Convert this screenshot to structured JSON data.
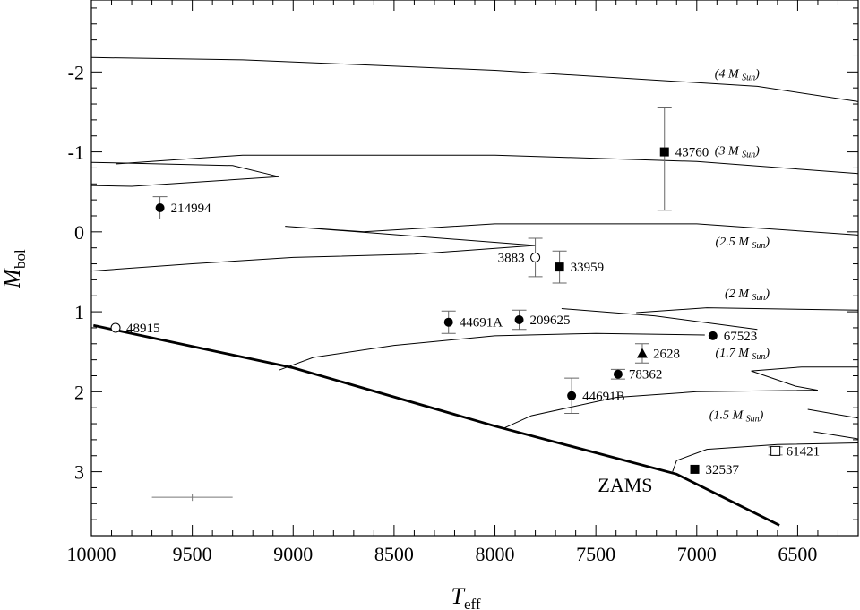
{
  "chart_data": {
    "type": "scatter",
    "xlabel": {
      "main": "T",
      "sub": "eff"
    },
    "ylabel": {
      "main": "M",
      "sub": "bol"
    },
    "xlim": [
      10000,
      6200
    ],
    "ylim": [
      3.8,
      -2.9
    ],
    "x_ticks": [
      10000,
      9500,
      9000,
      8500,
      8000,
      7500,
      7000,
      6500
    ],
    "y_ticks": [
      -2,
      -1,
      0,
      1,
      2,
      3
    ],
    "x_tick_labels": [
      "10000",
      "9500",
      "9000",
      "8500",
      "8000",
      "7500",
      "7000",
      "6500"
    ],
    "y_tick_labels": [
      "-2",
      "-1",
      "0",
      "1",
      "2",
      "3"
    ],
    "stars": [
      {
        "label": "214994",
        "teff": 9660,
        "mbol": -0.3,
        "marker": "filled-circle",
        "err_low": 0.14,
        "err_high": 0.14
      },
      {
        "label": "48915",
        "teff": 9880,
        "mbol": 1.2,
        "marker": "open-circle"
      },
      {
        "label": "3883",
        "teff": 7800,
        "mbol": 0.32,
        "marker": "open-circle",
        "err_low": 0.24,
        "err_high": 0.24
      },
      {
        "label": "33959",
        "teff": 7680,
        "mbol": 0.44,
        "marker": "filled-square",
        "err_low": 0.2,
        "err_high": 0.2
      },
      {
        "label": "43760",
        "teff": 7160,
        "mbol": -1.0,
        "marker": "filled-square",
        "err_low": 0.73,
        "err_high": 0.55
      },
      {
        "label": "44691A",
        "teff": 8230,
        "mbol": 1.13,
        "marker": "filled-circle",
        "err_low": 0.14,
        "err_high": 0.14
      },
      {
        "label": "209625",
        "teff": 7880,
        "mbol": 1.1,
        "marker": "filled-circle",
        "err_low": 0.12,
        "err_high": 0.12
      },
      {
        "label": "67523",
        "teff": 6920,
        "mbol": 1.3,
        "marker": "filled-circle"
      },
      {
        "label": "2628",
        "teff": 7270,
        "mbol": 1.52,
        "marker": "filled-triangle",
        "err_low": 0.12,
        "err_high": 0.12
      },
      {
        "label": "78362",
        "teff": 7390,
        "mbol": 1.78,
        "marker": "filled-circle",
        "err_low": 0.06,
        "err_high": 0.06
      },
      {
        "label": "44691B",
        "teff": 7620,
        "mbol": 2.05,
        "marker": "filled-circle",
        "err_low": 0.22,
        "err_high": 0.22
      },
      {
        "label": "61421",
        "teff": 6610,
        "mbol": 2.74,
        "marker": "open-square",
        "err_low": 0.05,
        "err_high": 0.05
      },
      {
        "label": "32537",
        "teff": 7010,
        "mbol": 2.97,
        "marker": "filled-square"
      }
    ],
    "zams": {
      "label": "ZAMS",
      "points": [
        [
          9990,
          1.17
        ],
        [
          9000,
          1.7
        ],
        [
          8000,
          2.43
        ],
        [
          7100,
          3.03
        ],
        [
          6590,
          3.67
        ]
      ]
    },
    "tracks": [
      {
        "label_main": "(4 M",
        "label_sub": "Sun",
        "label_end": ")",
        "points": [
          [
            10000,
            -2.18
          ],
          [
            9250,
            -2.15
          ],
          [
            8000,
            -2.02
          ],
          [
            6700,
            -1.82
          ],
          [
            6200,
            -1.63
          ]
        ]
      },
      {
        "label_main": "(3 M",
        "label_sub": "Sun",
        "label_end": ")",
        "points": [
          [
            9000,
            0.0
          ]
        ],
        "segments": [
          [
            [
              10000,
              -0.87
            ],
            [
              9300,
              -0.83
            ],
            [
              9070,
              -0.69
            ],
            [
              9800,
              -0.57
            ],
            [
              10000,
              -0.58
            ]
          ],
          [
            [
              9880,
              -0.85
            ],
            [
              9250,
              -0.96
            ],
            [
              8000,
              -0.96
            ],
            [
              7000,
              -0.88
            ],
            [
              6200,
              -0.73
            ]
          ]
        ]
      },
      {
        "label_main": "(2.5 M",
        "label_sub": "Sun",
        "label_end": ")",
        "segments": [
          [
            [
              10000,
              0.49
            ],
            [
              9500,
              0.4
            ],
            [
              9000,
              0.32
            ],
            [
              8400,
              0.28
            ],
            [
              7800,
              0.17
            ],
            [
              9040,
              -0.07
            ],
            [
              8650,
              0.0
            ],
            [
              8000,
              -0.1
            ],
            [
              7000,
              -0.1
            ],
            [
              6200,
              0.04
            ]
          ]
        ]
      },
      {
        "label_main": "(2 M",
        "label_sub": "Sun",
        "label_end": ")",
        "segments": [
          [
            [
              9070,
              1.73
            ],
            [
              8900,
              1.57
            ],
            [
              8500,
              1.42
            ],
            [
              8000,
              1.3
            ],
            [
              7500,
              1.27
            ],
            [
              6960,
              1.29
            ]
          ],
          [
            [
              7670,
              0.96
            ],
            [
              7210,
              1.05
            ],
            [
              6700,
              1.22
            ]
          ],
          [
            [
              7300,
              1.01
            ],
            [
              6950,
              0.95
            ],
            [
              6200,
              0.98
            ]
          ]
        ]
      },
      {
        "label_main": "(1.7 M",
        "label_sub": "Sun",
        "label_end": ")",
        "segments": [
          [
            [
              7960,
              2.46
            ],
            [
              7820,
              2.3
            ],
            [
              7400,
              2.07
            ],
            [
              7000,
              2.0
            ],
            [
              6400,
              1.98
            ],
            [
              6510,
              1.93
            ],
            [
              6730,
              1.74
            ],
            [
              6480,
              1.69
            ],
            [
              6200,
              1.69
            ]
          ]
        ]
      },
      {
        "label_main": "(1.5 M",
        "label_sub": "Sun",
        "label_end": ")",
        "segments": [
          [
            [
              7120,
              3.0
            ],
            [
              7100,
              2.86
            ],
            [
              6950,
              2.72
            ],
            [
              6600,
              2.66
            ],
            [
              6200,
              2.64
            ]
          ],
          [
            [
              6450,
              2.22
            ],
            [
              6200,
              2.33
            ]
          ],
          [
            [
              6420,
              2.5
            ],
            [
              6200,
              2.59
            ]
          ]
        ]
      }
    ],
    "typical_error": {
      "teff": 9500,
      "mbol": 3.32,
      "err_teff": 200,
      "err_mbol": 0.03
    }
  }
}
